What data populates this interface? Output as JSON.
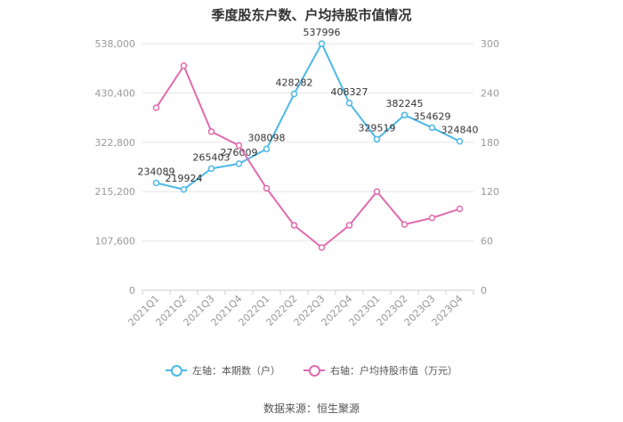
{
  "title": "季度股东户数、户均持股市值情况",
  "source": "数据来源：恒生聚源",
  "colors": {
    "left": "#4DB8E8",
    "right": "#E06BAE",
    "grid": "#e6e6e6",
    "axis_text": "#999999",
    "label": "#333333"
  },
  "legend": {
    "left_label": "左轴：本期数（户）",
    "right_label": "右轴：户均持股市值（万元）"
  },
  "chart_data": {
    "type": "line",
    "categories": [
      "2021Q1",
      "2021Q2",
      "2021Q3",
      "2021Q4",
      "2022Q1",
      "2022Q2",
      "2022Q3",
      "2022Q4",
      "2023Q1",
      "2023Q2",
      "2023Q3",
      "2023Q4"
    ],
    "y_left": {
      "ticks": [
        "0",
        "107,600",
        "215,200",
        "322,800",
        "430,400",
        "538,000"
      ],
      "min": 0,
      "max": 538000
    },
    "y_right": {
      "ticks": [
        "0",
        "60",
        "120",
        "180",
        "240",
        "300"
      ],
      "min": 0,
      "max": 300
    },
    "series": [
      {
        "name": "左轴：本期数（户）",
        "axis": "left",
        "values": [
          234089,
          219924,
          265403,
          276009,
          308098,
          428282,
          537996,
          408327,
          329519,
          382245,
          354629,
          324840
        ],
        "labels": [
          "234089",
          "219924",
          "265403",
          "276009",
          "308098",
          "428282",
          "537996",
          "408327",
          "329519",
          "382245",
          "354629",
          "324840"
        ]
      },
      {
        "name": "右轴：户均持股市值（万元）",
        "axis": "right",
        "values": [
          222,
          273,
          193,
          176,
          124,
          79,
          52,
          79,
          120,
          80,
          88,
          99
        ]
      }
    ],
    "grid": true,
    "legend_position": "bottom"
  }
}
